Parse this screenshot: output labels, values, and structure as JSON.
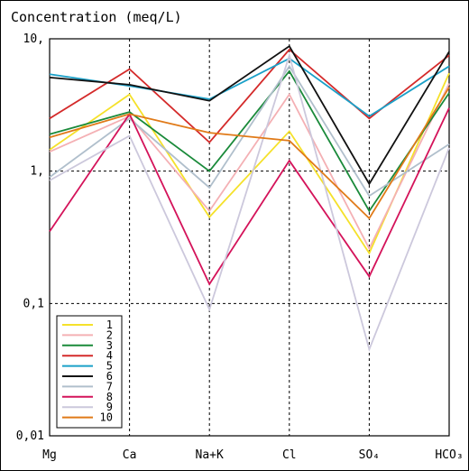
{
  "chart_data": {
    "type": "line",
    "title": "Concentration (meq/L)",
    "y_scale": "log",
    "ylim": [
      0.01,
      10
    ],
    "y_ticks": [
      "10,",
      "1,",
      "0,1",
      "0,01"
    ],
    "y_tick_values": [
      10,
      1,
      0.1,
      0.01
    ],
    "categories": [
      "Mg",
      "Ca",
      "Na+K",
      "Cl",
      "SO4",
      "HCO3"
    ],
    "category_labels": [
      "Mg",
      "Ca",
      "Na+K",
      "Cl",
      "SO₄",
      "HCO₃"
    ],
    "grid": true,
    "legend_position": "bottom-left",
    "series": [
      {
        "name": "1",
        "color": "#f5e12a",
        "values": [
          1.45,
          3.8,
          0.45,
          2.0,
          0.24,
          5.5
        ]
      },
      {
        "name": "2",
        "color": "#f4b0b4",
        "values": [
          1.4,
          2.6,
          0.5,
          3.8,
          0.26,
          4.6
        ]
      },
      {
        "name": "3",
        "color": "#1a8a3a",
        "values": [
          1.9,
          2.8,
          1.0,
          5.7,
          0.5,
          3.9
        ]
      },
      {
        "name": "4",
        "color": "#d42a2a",
        "values": [
          2.5,
          5.9,
          1.65,
          8.3,
          2.5,
          7.5
        ]
      },
      {
        "name": "5",
        "color": "#1aa0c8",
        "values": [
          5.4,
          4.4,
          3.5,
          7.1,
          2.6,
          6.2
        ]
      },
      {
        "name": "6",
        "color": "#111111",
        "values": [
          5.1,
          4.5,
          3.4,
          8.8,
          0.8,
          8.0
        ]
      },
      {
        "name": "7",
        "color": "#b0bfcc",
        "values": [
          0.9,
          2.5,
          0.75,
          6.2,
          0.65,
          1.6
        ]
      },
      {
        "name": "8",
        "color": "#d4135a",
        "values": [
          0.35,
          2.7,
          0.14,
          1.2,
          0.16,
          3.0
        ]
      },
      {
        "name": "9",
        "color": "#ccc8dc",
        "values": [
          0.85,
          1.85,
          0.09,
          7.5,
          0.045,
          1.5
        ]
      },
      {
        "name": "10",
        "color": "#e07a18",
        "values": [
          1.8,
          2.7,
          1.95,
          1.7,
          0.44,
          4.3
        ]
      }
    ]
  }
}
